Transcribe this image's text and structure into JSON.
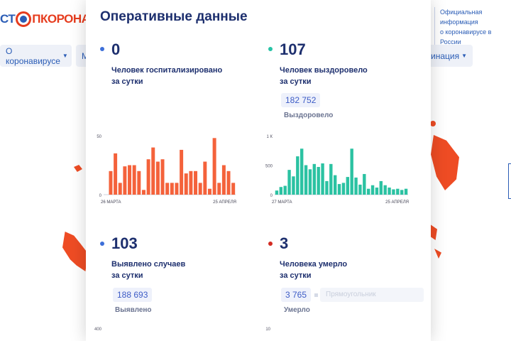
{
  "site": {
    "logo": {
      "part_blue_1": "СТ",
      "part_red": "ПКОРОНАВ"
    },
    "info_text_line1": "Официальная информация",
    "info_text_line2": "о коронавирусе в России",
    "nav": {
      "item1": "О коронавирусе",
      "item2": "М",
      "item3": "цинация"
    }
  },
  "panel": {
    "title": "Оперативные данные",
    "blocks": [
      {
        "value": "0",
        "label_line1": "Человек госпитализировано",
        "label_line2": "за сутки",
        "dot_color": "#3d6fd9"
      },
      {
        "value": "107",
        "label_line1": "Человек выздоровело",
        "label_line2": "за сутки",
        "total": "182 752",
        "total_label": "Выздоровело",
        "dot_color": "#27c3a6"
      },
      {
        "value": "103",
        "label_line1": "Выявлено случаев",
        "label_line2": "за сутки",
        "total": "188 693",
        "total_label": "Выявлено",
        "dot_color": "#3d6fd9"
      },
      {
        "value": "3",
        "label_line1": "Человека умерло",
        "label_line2": "за сутки",
        "total": "3 765",
        "total_label": "Умерло",
        "dot_color": "#d32b22",
        "ghost_text": "Прямоугольник"
      }
    ]
  },
  "chart_data": [
    {
      "type": "bar",
      "color": "#f4623b",
      "y_ticks": [
        "50",
        "0"
      ],
      "ylim": [
        0,
        50
      ],
      "x_start_label": "26 МАРТА",
      "x_end_label": "25 АПРЕЛЯ",
      "values": [
        0,
        20,
        35,
        10,
        24,
        25,
        25,
        20,
        4,
        30,
        40,
        28,
        30,
        10,
        10,
        10,
        38,
        18,
        20,
        20,
        10,
        28,
        5,
        48,
        10,
        25,
        20,
        10
      ]
    },
    {
      "type": "bar",
      "color": "#2bc2a2",
      "y_ticks": [
        "1 К",
        "500",
        "0"
      ],
      "ylim": [
        0,
        1000
      ],
      "x_start_label": "27 МАРТА",
      "x_end_label": "25 АПРЕЛЯ",
      "values": [
        70,
        130,
        150,
        420,
        310,
        650,
        780,
        500,
        430,
        520,
        470,
        530,
        230,
        520,
        330,
        180,
        200,
        300,
        780,
        290,
        170,
        350,
        100,
        160,
        120,
        230,
        160,
        120,
        90,
        100,
        80,
        100
      ]
    },
    {
      "type": "bar",
      "y_ticks": [
        "400"
      ],
      "values": []
    },
    {
      "type": "bar",
      "y_ticks": [
        "10"
      ],
      "values": []
    }
  ]
}
